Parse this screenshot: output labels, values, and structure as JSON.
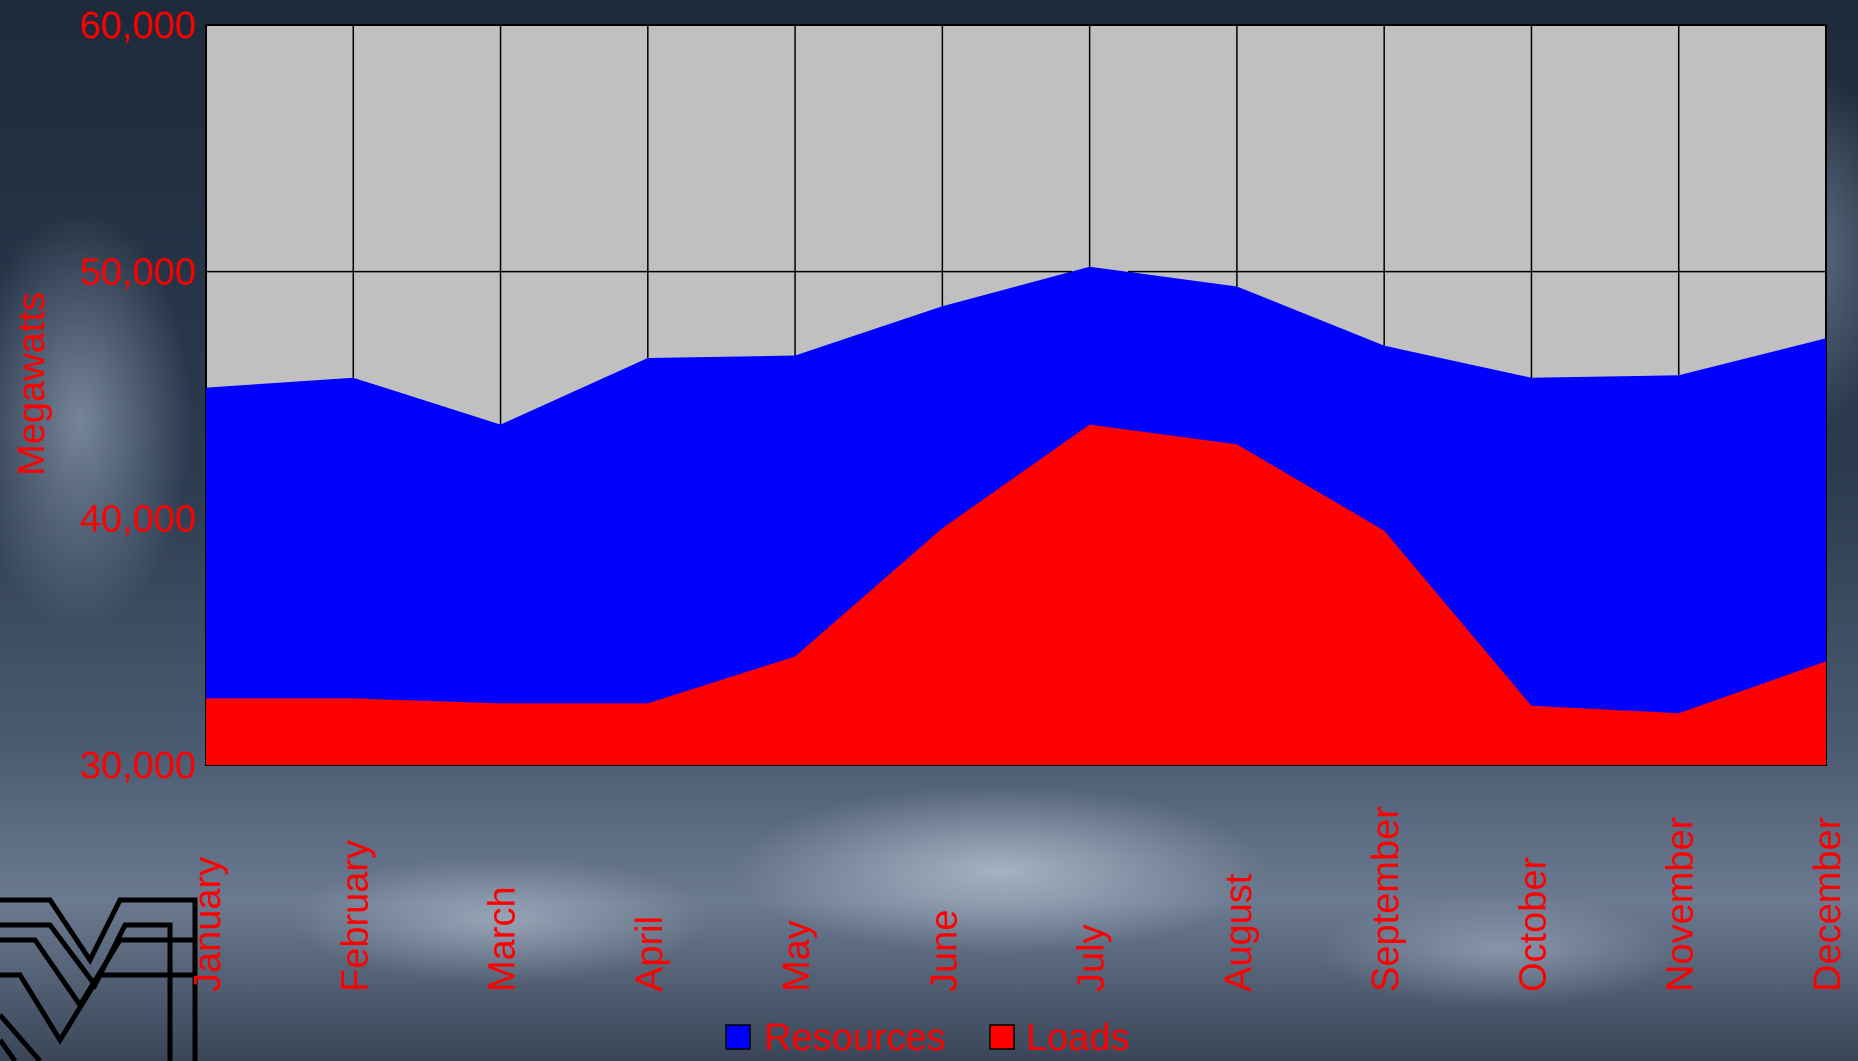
{
  "chart_data": {
    "type": "area",
    "title": "",
    "xlabel": "",
    "ylabel": "Megawatts",
    "ylim": [
      30000,
      60000
    ],
    "yticks": [
      30000,
      40000,
      50000,
      60000
    ],
    "ytick_labels": [
      "30,000",
      "40,000",
      "50,000",
      "60,000"
    ],
    "categories": [
      "January",
      "February",
      "March",
      "April",
      "May",
      "June",
      "July",
      "August",
      "September",
      "October",
      "November",
      "December"
    ],
    "series": [
      {
        "name": "Resources",
        "color": "#0000ff",
        "values": [
          45300,
          45700,
          43800,
          46500,
          46600,
          48600,
          50200,
          49400,
          47000,
          45700,
          45800,
          47300
        ]
      },
      {
        "name": "Loads",
        "color": "#ff0000",
        "values": [
          32700,
          32700,
          32500,
          32500,
          34400,
          39600,
          43800,
          43000,
          39500,
          32400,
          32100,
          34200
        ]
      }
    ],
    "grid": true,
    "plot_background": "#c0c0c0",
    "legend_position": "bottom-center"
  }
}
